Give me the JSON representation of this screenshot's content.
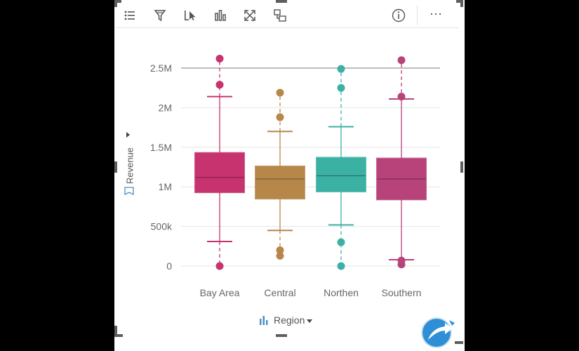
{
  "toolbar": {
    "icons": [
      "legend-icon",
      "filter-icon",
      "select-icon",
      "visualization-type-icon",
      "maximize-icon",
      "card-flip-icon"
    ],
    "right_icons": [
      "info-icon",
      "more-options-icon"
    ],
    "more_label": "⋯"
  },
  "axes": {
    "y_title": "Revenue",
    "x_title": "Region"
  },
  "colors": {
    "bay_area": "#c7336e",
    "central": "#b7874a",
    "northen": "#3bb1a3",
    "southern": "#b8427a",
    "gridline": "#e6e6e6",
    "reference_line": "#bdbdbd",
    "frame": "#6aa7cf"
  },
  "chart_data": {
    "type": "box",
    "categories": [
      "Bay Area",
      "Central",
      "Northen",
      "Southern"
    ],
    "ylabel": "Revenue",
    "xlabel": "Region",
    "ylim": [
      0,
      2500000
    ],
    "yticks": [
      0,
      500000,
      1000000,
      1500000,
      2000000,
      2500000
    ],
    "ytick_labels": [
      "0",
      "500k",
      "1M",
      "1.5M",
      "2M",
      "2.5M"
    ],
    "grid": true,
    "legend": "none",
    "boxes": [
      {
        "category": "Bay Area",
        "min": 310000,
        "q1": 930000,
        "median": 1120000,
        "q3": 1430000,
        "max": 2140000,
        "outliers": [
          2620000,
          2290000,
          0
        ]
      },
      {
        "category": "Central",
        "min": 450000,
        "q1": 850000,
        "median": 1100000,
        "q3": 1260000,
        "max": 1700000,
        "outliers": [
          2190000,
          1880000,
          200000,
          130000
        ]
      },
      {
        "category": "Northen",
        "min": 520000,
        "q1": 940000,
        "median": 1140000,
        "q3": 1370000,
        "max": 1760000,
        "outliers": [
          2490000,
          2250000,
          300000,
          0
        ]
      },
      {
        "category": "Southern",
        "min": 80000,
        "q1": 840000,
        "median": 1100000,
        "q3": 1360000,
        "max": 2110000,
        "outliers": [
          2600000,
          2140000,
          70000,
          20000
        ]
      }
    ]
  }
}
